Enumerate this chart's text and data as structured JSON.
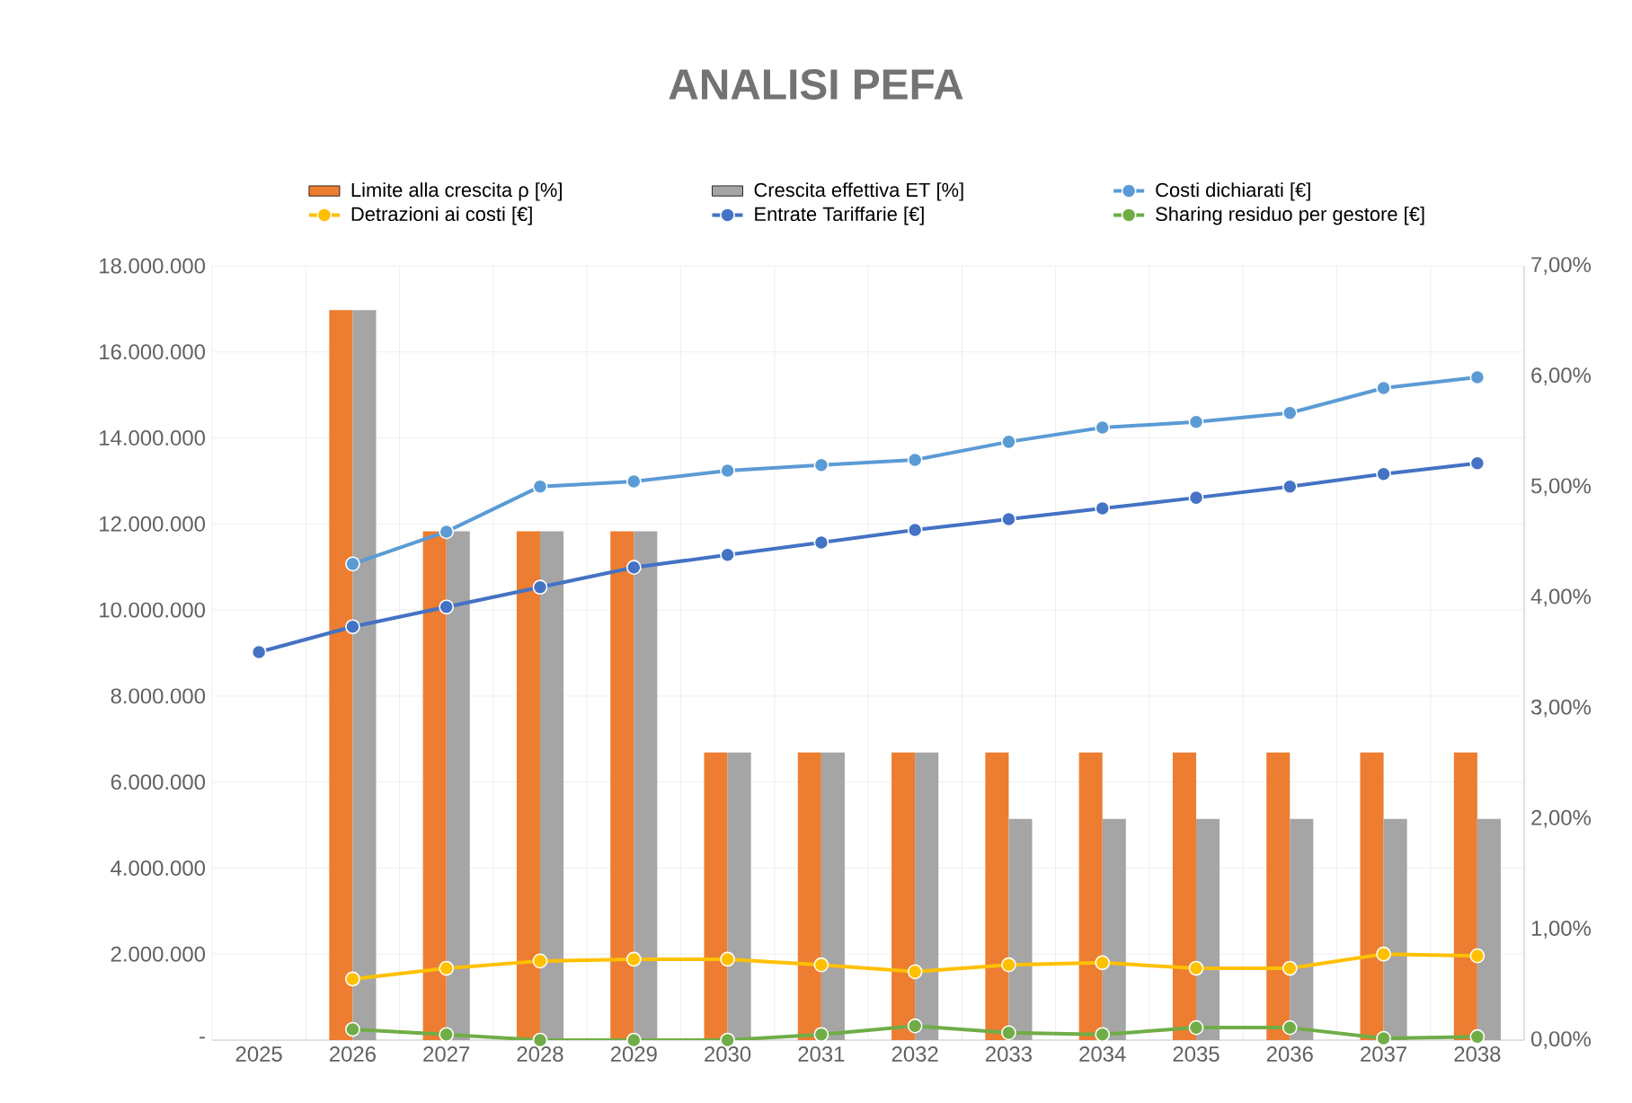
{
  "chart_data": {
    "type": "bar",
    "title": "ANALISI PEFA",
    "categories": [
      "2025",
      "2026",
      "2027",
      "2028",
      "2029",
      "2030",
      "2031",
      "2032",
      "2033",
      "2034",
      "2035",
      "2036",
      "2037",
      "2038"
    ],
    "series": [
      {
        "name": "Limite alla crescita ρ [%]",
        "axis": "y2",
        "color": "#ed7d31",
        "values": [
          null,
          6.6,
          4.6,
          4.6,
          4.6,
          2.6,
          2.6,
          2.6,
          2.6,
          2.6,
          2.6,
          2.6,
          2.6,
          2.6
        ]
      },
      {
        "name": "Crescita effettiva ET [%]",
        "axis": "y2",
        "color": "#a5a5a5",
        "values": [
          null,
          6.6,
          4.6,
          4.6,
          4.6,
          2.6,
          2.6,
          2.6,
          2.0,
          2.0,
          2.0,
          2.0,
          2.0,
          2.0
        ]
      },
      {
        "name": "Costi dichiarati [€]",
        "type": "line",
        "color": "#5b9bd5",
        "values": [
          null,
          11070000,
          11820000,
          12870000,
          12990000,
          13240000,
          13370000,
          13490000,
          13910000,
          14240000,
          14370000,
          14580000,
          15160000,
          15410000
        ]
      },
      {
        "name": "Detrazioni ai costi [€]",
        "type": "line",
        "color": "#ffc000",
        "values": [
          null,
          1420000,
          1670000,
          1840000,
          1880000,
          1880000,
          1750000,
          1590000,
          1750000,
          1800000,
          1670000,
          1670000,
          2000000,
          1960000
        ]
      },
      {
        "name": "Entrate Tariffarie [€]",
        "type": "line",
        "color": "#4472c4",
        "values": [
          9020000,
          9610000,
          10070000,
          10530000,
          10990000,
          11280000,
          11570000,
          11860000,
          12110000,
          12360000,
          12610000,
          12870000,
          13160000,
          13410000
        ]
      },
      {
        "name": "Sharing residuo per gestore [€]",
        "type": "line",
        "color": "#70ad47",
        "values": [
          null,
          250000,
          130000,
          0,
          0,
          0,
          130000,
          330000,
          170000,
          130000,
          290000,
          290000,
          40000,
          80000
        ]
      }
    ],
    "ylim": [
      0,
      18000000
    ],
    "yticks": [
      {
        "value": 0,
        "label": "-"
      },
      {
        "value": 2000000,
        "label": "2.000.000"
      },
      {
        "value": 4000000,
        "label": "4.000.000"
      },
      {
        "value": 6000000,
        "label": "6.000.000"
      },
      {
        "value": 8000000,
        "label": "8.000.000"
      },
      {
        "value": 10000000,
        "label": "10.000.000"
      },
      {
        "value": 12000000,
        "label": "12.000.000"
      },
      {
        "value": 14000000,
        "label": "14.000.000"
      },
      {
        "value": 16000000,
        "label": "16.000.000"
      },
      {
        "value": 18000000,
        "label": "18.000.000"
      }
    ],
    "y2lim": [
      0,
      7
    ],
    "y2ticks": [
      {
        "value": 0,
        "label": "0,00%"
      },
      {
        "value": 1,
        "label": "1,00%"
      },
      {
        "value": 2,
        "label": "2,00%"
      },
      {
        "value": 3,
        "label": "3,00%"
      },
      {
        "value": 4,
        "label": "4,00%"
      },
      {
        "value": 5,
        "label": "5,00%"
      },
      {
        "value": 6,
        "label": "6,00%"
      },
      {
        "value": 7,
        "label": "7,00%"
      }
    ],
    "grid": true,
    "legend": "top",
    "marker": "circle",
    "line_style": "solid"
  }
}
